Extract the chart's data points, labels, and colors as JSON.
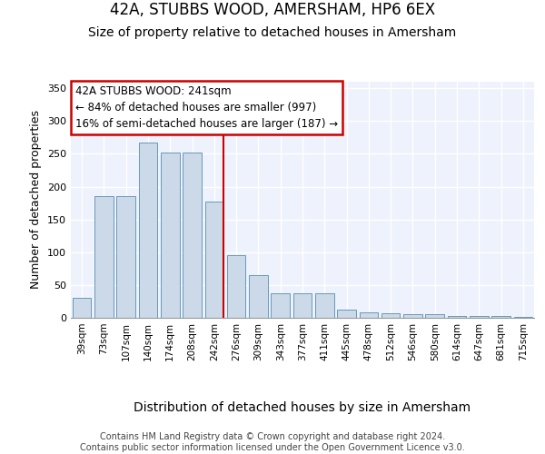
{
  "title": "42A, STUBBS WOOD, AMERSHAM, HP6 6EX",
  "subtitle": "Size of property relative to detached houses in Amersham",
  "xlabel": "Distribution of detached houses by size in Amersham",
  "ylabel": "Number of detached properties",
  "categories": [
    "39sqm",
    "73sqm",
    "107sqm",
    "140sqm",
    "174sqm",
    "208sqm",
    "242sqm",
    "276sqm",
    "309sqm",
    "343sqm",
    "377sqm",
    "411sqm",
    "445sqm",
    "478sqm",
    "512sqm",
    "546sqm",
    "580sqm",
    "614sqm",
    "647sqm",
    "681sqm",
    "715sqm"
  ],
  "values": [
    30,
    185,
    185,
    267,
    252,
    252,
    177,
    95,
    65,
    38,
    38,
    38,
    12,
    9,
    7,
    6,
    5,
    3,
    3,
    3,
    2
  ],
  "bar_color": "#ccd9e8",
  "bar_edge_color": "#6699bb",
  "highlight_bar_index": 6,
  "red_line_color": "#cc0000",
  "annotation_text": "42A STUBBS WOOD: 241sqm\n← 84% of detached houses are smaller (997)\n16% of semi-detached houses are larger (187) →",
  "annotation_box_color": "#ffffff",
  "annotation_box_edge": "#cc0000",
  "ylim": [
    0,
    360
  ],
  "yticks": [
    0,
    50,
    100,
    150,
    200,
    250,
    300,
    350
  ],
  "background_color": "#eef2fc",
  "grid_color": "#ffffff",
  "footer": "Contains HM Land Registry data © Crown copyright and database right 2024.\nContains public sector information licensed under the Open Government Licence v3.0.",
  "title_fontsize": 12,
  "subtitle_fontsize": 10,
  "xlabel_fontsize": 10,
  "ylabel_fontsize": 9,
  "footer_fontsize": 7
}
